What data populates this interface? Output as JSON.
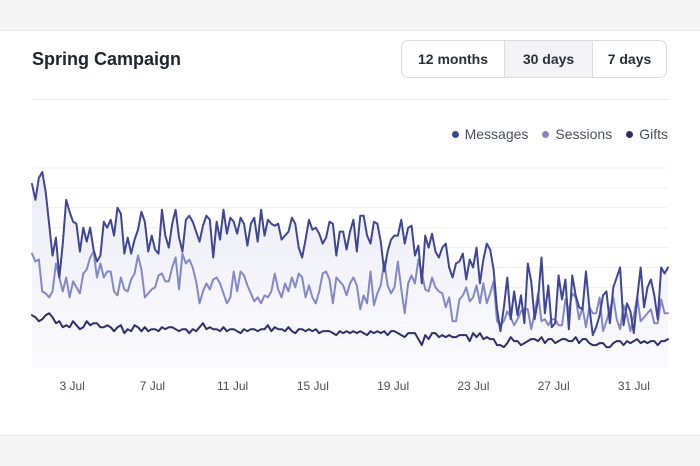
{
  "card": {
    "title": "Spring Campaign",
    "ranges": [
      "12 months",
      "30 days",
      "7 days"
    ],
    "active_range": "30 days"
  },
  "chart_data": {
    "type": "line",
    "title": "Spring Campaign",
    "xlabel": "",
    "ylabel": "",
    "grid": true,
    "legend_position": "top-right",
    "x_ticks": [
      "3 Jul",
      "7 Jul",
      "11 Jul",
      "15 Jul",
      "19 Jul",
      "23 Jul",
      "27 Jul",
      "31 Jul"
    ],
    "x_start_day": 1,
    "x_end_day": 32.7,
    "ylim": [
      0,
      100
    ],
    "series": [
      {
        "name": "Messages",
        "color": "#3f4696",
        "fill": true,
        "values": [
          92,
          84,
          95,
          98,
          88,
          72,
          56,
          65,
          45,
          62,
          84,
          78,
          73,
          72,
          58,
          70,
          63,
          70,
          59,
          53,
          56,
          73,
          70,
          74,
          66,
          80,
          77,
          57,
          65,
          57,
          64,
          69,
          78,
          73,
          58,
          66,
          59,
          57,
          79,
          66,
          60,
          72,
          79,
          65,
          58,
          74,
          76,
          73,
          68,
          63,
          71,
          76,
          74,
          55,
          73,
          64,
          79,
          67,
          75,
          73,
          67,
          75,
          72,
          61,
          72,
          75,
          63,
          79,
          66,
          74,
          72,
          71,
          72,
          64,
          66,
          68,
          75,
          72,
          60,
          55,
          64,
          74,
          69,
          70,
          67,
          62,
          65,
          73,
          72,
          56,
          68,
          68,
          59,
          68,
          74,
          58,
          76,
          76,
          66,
          62,
          73,
          72,
          63,
          48,
          58,
          64,
          66,
          66,
          74,
          62,
          70,
          71,
          56,
          61,
          42,
          66,
          60,
          67,
          58,
          55,
          60,
          62,
          50,
          45,
          52,
          53,
          57,
          44,
          54,
          50,
          60,
          42,
          54,
          62,
          59,
          49,
          29,
          18,
          30,
          45,
          24,
          38,
          26,
          36,
          22,
          52,
          43,
          24,
          34,
          55,
          27,
          41,
          20,
          22,
          46,
          34,
          44,
          19,
          46,
          36,
          30,
          29,
          48,
          30,
          16,
          20,
          26,
          36,
          38,
          22,
          40,
          45,
          50,
          21,
          32,
          28,
          17,
          35,
          50,
          30,
          40,
          44,
          36,
          24,
          50,
          47,
          50
        ]
      },
      {
        "name": "Sessions",
        "color": "#8488c8",
        "fill": false,
        "values": [
          57,
          53,
          54,
          38,
          37,
          35,
          38,
          52,
          45,
          38,
          45,
          35,
          43,
          40,
          37,
          47,
          49,
          55,
          58,
          45,
          52,
          45,
          48,
          48,
          38,
          36,
          45,
          39,
          38,
          44,
          47,
          56,
          49,
          35,
          37,
          39,
          40,
          46,
          47,
          43,
          43,
          50,
          55,
          39,
          57,
          52,
          54,
          50,
          43,
          32,
          38,
          42,
          39,
          44,
          45,
          42,
          37,
          32,
          35,
          48,
          38,
          48,
          46,
          41,
          37,
          33,
          35,
          32,
          36,
          35,
          38,
          47,
          39,
          35,
          42,
          38,
          45,
          40,
          47,
          45,
          35,
          41,
          35,
          32,
          38,
          47,
          48,
          44,
          32,
          45,
          43,
          41,
          36,
          42,
          45,
          41,
          29,
          36,
          32,
          48,
          31,
          37,
          41,
          53,
          41,
          37,
          40,
          53,
          39,
          27,
          42,
          46,
          42,
          54,
          47,
          39,
          38,
          45,
          40,
          38,
          37,
          30,
          35,
          23,
          23,
          34,
          36,
          40,
          33,
          35,
          41,
          32,
          42,
          32,
          37,
          43,
          23,
          21,
          23,
          28,
          25,
          21,
          24,
          28,
          29,
          29,
          19,
          27,
          37,
          23,
          24,
          21,
          24,
          24,
          21,
          21,
          34,
          28,
          37,
          35,
          24,
          30,
          20,
          30,
          27,
          27,
          35,
          18,
          23,
          29,
          35,
          24,
          19,
          31,
          26,
          18,
          26,
          35,
          23,
          25,
          27,
          29,
          22,
          22,
          34,
          27,
          27
        ]
      },
      {
        "name": "Gifts",
        "color": "#2c2f6b",
        "fill": false,
        "values": [
          26,
          25,
          23,
          24,
          26,
          27,
          25,
          22,
          23,
          20,
          21,
          20,
          23,
          21,
          19,
          20,
          23,
          21,
          22,
          22,
          20,
          20,
          21,
          20,
          18,
          20,
          21,
          17,
          19,
          18,
          21,
          20,
          18,
          20,
          18,
          19,
          19,
          18,
          20,
          19,
          20,
          20,
          19,
          18,
          19,
          19,
          17,
          19,
          18,
          20,
          22,
          19,
          20,
          19,
          19,
          18,
          20,
          18,
          19,
          19,
          18,
          17,
          19,
          18,
          19,
          19,
          18,
          19,
          19,
          21,
          18,
          20,
          19,
          19,
          18,
          20,
          18,
          17,
          19,
          19,
          18,
          19,
          18,
          19,
          17,
          18,
          18,
          18,
          17,
          16,
          18,
          17,
          18,
          17,
          18,
          17,
          18,
          17,
          16,
          18,
          17,
          18,
          17,
          18,
          16,
          18,
          18,
          17,
          16,
          15,
          17,
          17,
          17,
          14,
          11,
          16,
          14,
          17,
          17,
          15,
          16,
          15,
          16,
          15,
          15,
          16,
          16,
          16,
          13,
          17,
          15,
          17,
          14,
          15,
          14,
          14,
          11,
          11,
          10,
          12,
          15,
          13,
          13,
          11,
          12,
          13,
          14,
          14,
          13,
          15,
          12,
          14,
          14,
          12,
          13,
          14,
          14,
          13,
          13,
          15,
          12,
          14,
          14,
          12,
          11,
          11,
          12,
          12,
          10,
          10,
          12,
          13,
          13,
          11,
          13,
          12,
          13,
          14,
          12,
          13,
          12,
          13,
          13,
          11,
          13,
          13,
          14
        ]
      }
    ]
  }
}
